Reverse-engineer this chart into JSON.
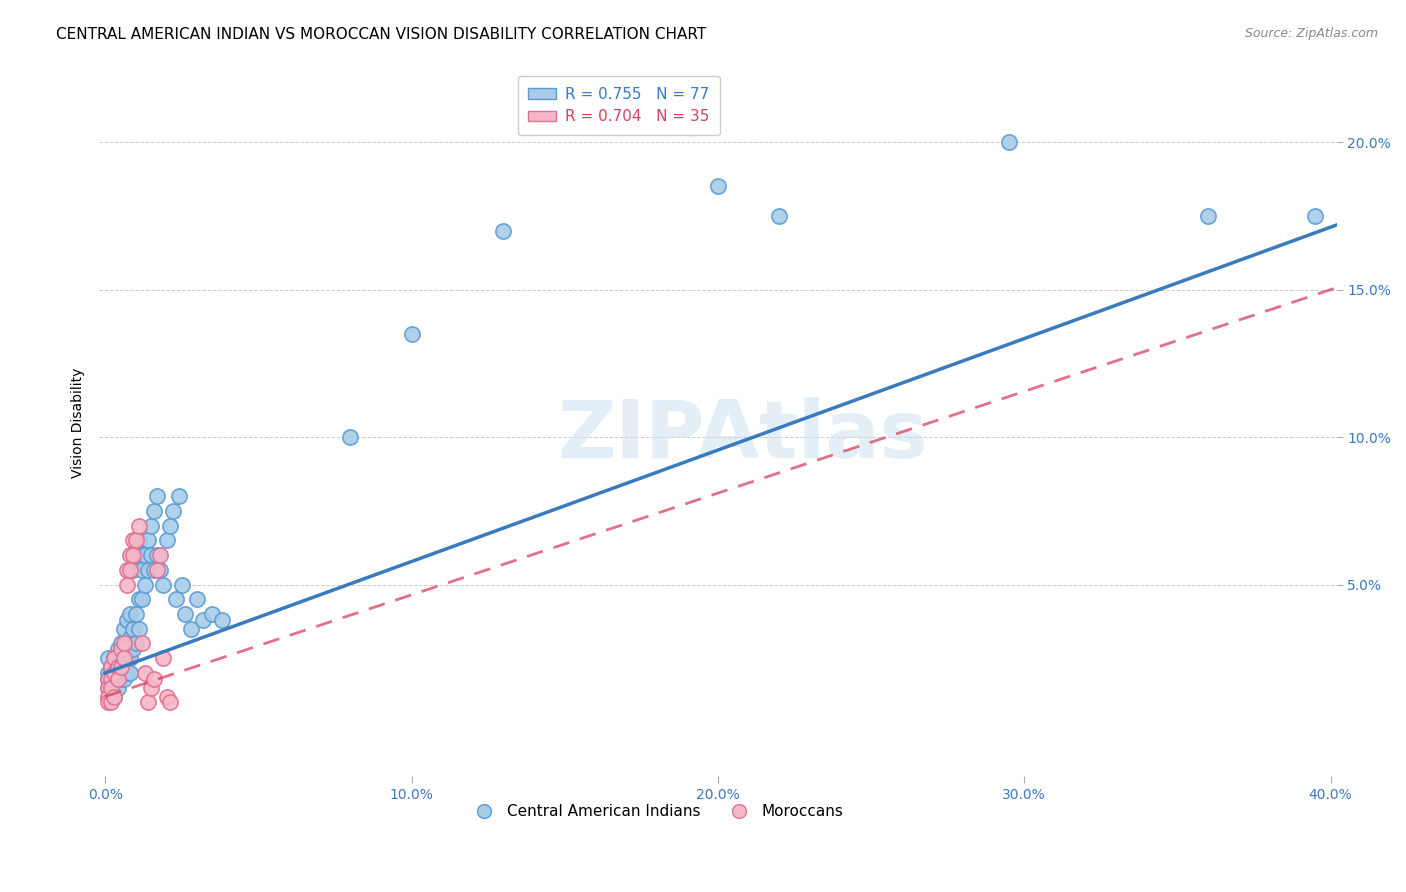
{
  "title": "CENTRAL AMERICAN INDIAN VS MOROCCAN VISION DISABILITY CORRELATION CHART",
  "source": "Source: ZipAtlas.com",
  "xlabel": "",
  "ylabel": "Vision Disability",
  "watermark": "ZIPAtlas",
  "xlim": [
    -0.002,
    0.402
  ],
  "ylim": [
    -0.015,
    0.225
  ],
  "xticks": [
    0.0,
    0.1,
    0.2,
    0.3,
    0.4
  ],
  "yticks": [
    0.05,
    0.1,
    0.15,
    0.2
  ],
  "xticklabels": [
    "0.0%",
    "10.0%",
    "20.0%",
    "30.0%",
    "40.0%"
  ],
  "yticklabels": [
    "5.0%",
    "10.0%",
    "15.0%",
    "20.0%"
  ],
  "blue_color": "#a8cce8",
  "blue_edge_color": "#5b9bd5",
  "pink_color": "#f4b8c8",
  "pink_edge_color": "#e07090",
  "blue_line_color": "#3a7abf",
  "pink_line_color": "#d94060",
  "legend_blue_label": "R = 0.755   N = 77",
  "legend_pink_label": "R = 0.704   N = 35",
  "legend_cat1": "Central American Indians",
  "legend_cat2": "Moroccans",
  "blue_regression": {
    "slope": 0.378,
    "intercept": 0.02
  },
  "pink_regression": {
    "slope": 0.345,
    "intercept": 0.012
  },
  "blue_points": [
    [
      0.001,
      0.025
    ],
    [
      0.001,
      0.02
    ],
    [
      0.001,
      0.018
    ],
    [
      0.001,
      0.015
    ],
    [
      0.002,
      0.022
    ],
    [
      0.002,
      0.018
    ],
    [
      0.002,
      0.015
    ],
    [
      0.002,
      0.012
    ],
    [
      0.002,
      0.02
    ],
    [
      0.003,
      0.025
    ],
    [
      0.003,
      0.02
    ],
    [
      0.003,
      0.018
    ],
    [
      0.003,
      0.015
    ],
    [
      0.003,
      0.012
    ],
    [
      0.004,
      0.028
    ],
    [
      0.004,
      0.022
    ],
    [
      0.004,
      0.018
    ],
    [
      0.004,
      0.015
    ],
    [
      0.005,
      0.03
    ],
    [
      0.005,
      0.025
    ],
    [
      0.005,
      0.022
    ],
    [
      0.005,
      0.018
    ],
    [
      0.006,
      0.035
    ],
    [
      0.006,
      0.028
    ],
    [
      0.006,
      0.022
    ],
    [
      0.006,
      0.018
    ],
    [
      0.007,
      0.038
    ],
    [
      0.007,
      0.03
    ],
    [
      0.007,
      0.025
    ],
    [
      0.007,
      0.02
    ],
    [
      0.008,
      0.04
    ],
    [
      0.008,
      0.032
    ],
    [
      0.008,
      0.025
    ],
    [
      0.008,
      0.02
    ],
    [
      0.009,
      0.055
    ],
    [
      0.009,
      0.035
    ],
    [
      0.009,
      0.028
    ],
    [
      0.01,
      0.06
    ],
    [
      0.01,
      0.04
    ],
    [
      0.01,
      0.03
    ],
    [
      0.011,
      0.065
    ],
    [
      0.011,
      0.045
    ],
    [
      0.011,
      0.035
    ],
    [
      0.012,
      0.055
    ],
    [
      0.012,
      0.045
    ],
    [
      0.013,
      0.06
    ],
    [
      0.013,
      0.05
    ],
    [
      0.014,
      0.065
    ],
    [
      0.014,
      0.055
    ],
    [
      0.015,
      0.07
    ],
    [
      0.015,
      0.06
    ],
    [
      0.016,
      0.075
    ],
    [
      0.016,
      0.055
    ],
    [
      0.017,
      0.08
    ],
    [
      0.017,
      0.06
    ],
    [
      0.018,
      0.055
    ],
    [
      0.019,
      0.05
    ],
    [
      0.02,
      0.065
    ],
    [
      0.021,
      0.07
    ],
    [
      0.022,
      0.075
    ],
    [
      0.023,
      0.045
    ],
    [
      0.024,
      0.08
    ],
    [
      0.025,
      0.05
    ],
    [
      0.026,
      0.04
    ],
    [
      0.028,
      0.035
    ],
    [
      0.03,
      0.045
    ],
    [
      0.032,
      0.038
    ],
    [
      0.035,
      0.04
    ],
    [
      0.038,
      0.038
    ],
    [
      0.08,
      0.1
    ],
    [
      0.1,
      0.135
    ],
    [
      0.13,
      0.17
    ],
    [
      0.2,
      0.185
    ],
    [
      0.22,
      0.175
    ],
    [
      0.295,
      0.2
    ],
    [
      0.36,
      0.175
    ],
    [
      0.395,
      0.175
    ]
  ],
  "pink_points": [
    [
      0.001,
      0.018
    ],
    [
      0.001,
      0.015
    ],
    [
      0.001,
      0.012
    ],
    [
      0.001,
      0.01
    ],
    [
      0.002,
      0.022
    ],
    [
      0.002,
      0.018
    ],
    [
      0.002,
      0.015
    ],
    [
      0.002,
      0.01
    ],
    [
      0.003,
      0.025
    ],
    [
      0.003,
      0.02
    ],
    [
      0.003,
      0.012
    ],
    [
      0.004,
      0.022
    ],
    [
      0.004,
      0.018
    ],
    [
      0.005,
      0.028
    ],
    [
      0.005,
      0.022
    ],
    [
      0.006,
      0.03
    ],
    [
      0.006,
      0.025
    ],
    [
      0.007,
      0.055
    ],
    [
      0.007,
      0.05
    ],
    [
      0.008,
      0.06
    ],
    [
      0.008,
      0.055
    ],
    [
      0.009,
      0.065
    ],
    [
      0.009,
      0.06
    ],
    [
      0.01,
      0.065
    ],
    [
      0.011,
      0.07
    ],
    [
      0.012,
      0.03
    ],
    [
      0.013,
      0.02
    ],
    [
      0.014,
      0.01
    ],
    [
      0.015,
      0.015
    ],
    [
      0.016,
      0.018
    ],
    [
      0.017,
      0.055
    ],
    [
      0.018,
      0.06
    ],
    [
      0.019,
      0.025
    ],
    [
      0.02,
      0.012
    ],
    [
      0.021,
      0.01
    ]
  ],
  "background_color": "#ffffff",
  "grid_color": "#cccccc",
  "title_fontsize": 11,
  "axis_label_fontsize": 10,
  "tick_fontsize": 10,
  "legend_fontsize": 11
}
